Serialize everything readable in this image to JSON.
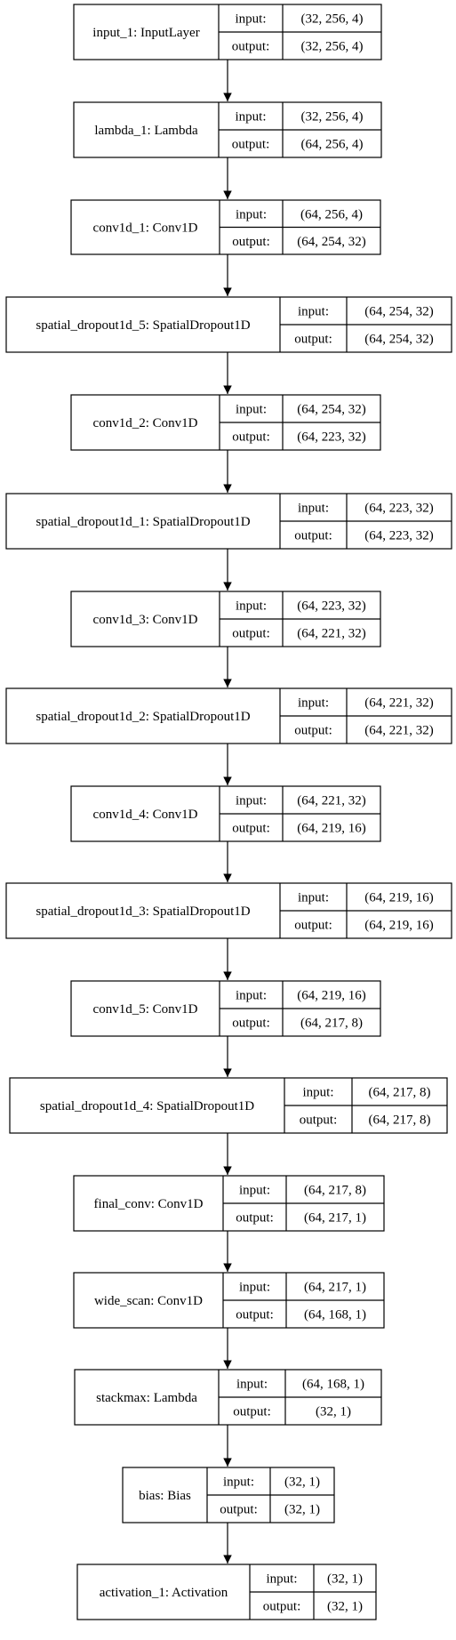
{
  "layers": [
    {
      "name": "input_1: InputLayer",
      "input_label": "input:",
      "output_label": "output:",
      "input": "(32, 256, 4)",
      "output": "(32, 256, 4)"
    },
    {
      "name": "lambda_1: Lambda",
      "input_label": "input:",
      "output_label": "output:",
      "input": "(32, 256, 4)",
      "output": "(64, 256, 4)"
    },
    {
      "name": "conv1d_1: Conv1D",
      "input_label": "input:",
      "output_label": "output:",
      "input": "(64, 256, 4)",
      "output": "(64, 254, 32)"
    },
    {
      "name": "spatial_dropout1d_5: SpatialDropout1D",
      "input_label": "input:",
      "output_label": "output:",
      "input": "(64, 254, 32)",
      "output": "(64, 254, 32)"
    },
    {
      "name": "conv1d_2: Conv1D",
      "input_label": "input:",
      "output_label": "output:",
      "input": "(64, 254, 32)",
      "output": "(64, 223, 32)"
    },
    {
      "name": "spatial_dropout1d_1: SpatialDropout1D",
      "input_label": "input:",
      "output_label": "output:",
      "input": "(64, 223, 32)",
      "output": "(64, 223, 32)"
    },
    {
      "name": "conv1d_3: Conv1D",
      "input_label": "input:",
      "output_label": "output:",
      "input": "(64, 223, 32)",
      "output": "(64, 221, 32)"
    },
    {
      "name": "spatial_dropout1d_2: SpatialDropout1D",
      "input_label": "input:",
      "output_label": "output:",
      "input": "(64, 221, 32)",
      "output": "(64, 221, 32)"
    },
    {
      "name": "conv1d_4: Conv1D",
      "input_label": "input:",
      "output_label": "output:",
      "input": "(64, 221, 32)",
      "output": "(64, 219, 16)"
    },
    {
      "name": "spatial_dropout1d_3: SpatialDropout1D",
      "input_label": "input:",
      "output_label": "output:",
      "input": "(64, 219, 16)",
      "output": "(64, 219, 16)"
    },
    {
      "name": "conv1d_5: Conv1D",
      "input_label": "input:",
      "output_label": "output:",
      "input": "(64, 219, 16)",
      "output": "(64, 217, 8)"
    },
    {
      "name": "spatial_dropout1d_4: SpatialDropout1D",
      "input_label": "input:",
      "output_label": "output:",
      "input": "(64, 217, 8)",
      "output": "(64, 217, 8)"
    },
    {
      "name": "final_conv: Conv1D",
      "input_label": "input:",
      "output_label": "output:",
      "input": "(64, 217, 8)",
      "output": "(64, 217, 1)"
    },
    {
      "name": "wide_scan: Conv1D",
      "input_label": "input:",
      "output_label": "output:",
      "input": "(64, 217, 1)",
      "output": "(64, 168, 1)"
    },
    {
      "name": "stackmax: Lambda",
      "input_label": "input:",
      "output_label": "output:",
      "input": "(64, 168, 1)",
      "output": "(32, 1)"
    },
    {
      "name": "bias: Bias",
      "input_label": "input:",
      "output_label": "output:",
      "input": "(32, 1)",
      "output": "(32, 1)"
    },
    {
      "name": "activation_1: Activation",
      "input_label": "input:",
      "output_label": "output:",
      "input": "(32, 1)",
      "output": "(32, 1)"
    }
  ],
  "colors": {
    "stroke": "#000000",
    "background": "#ffffff",
    "text": "#000000"
  }
}
